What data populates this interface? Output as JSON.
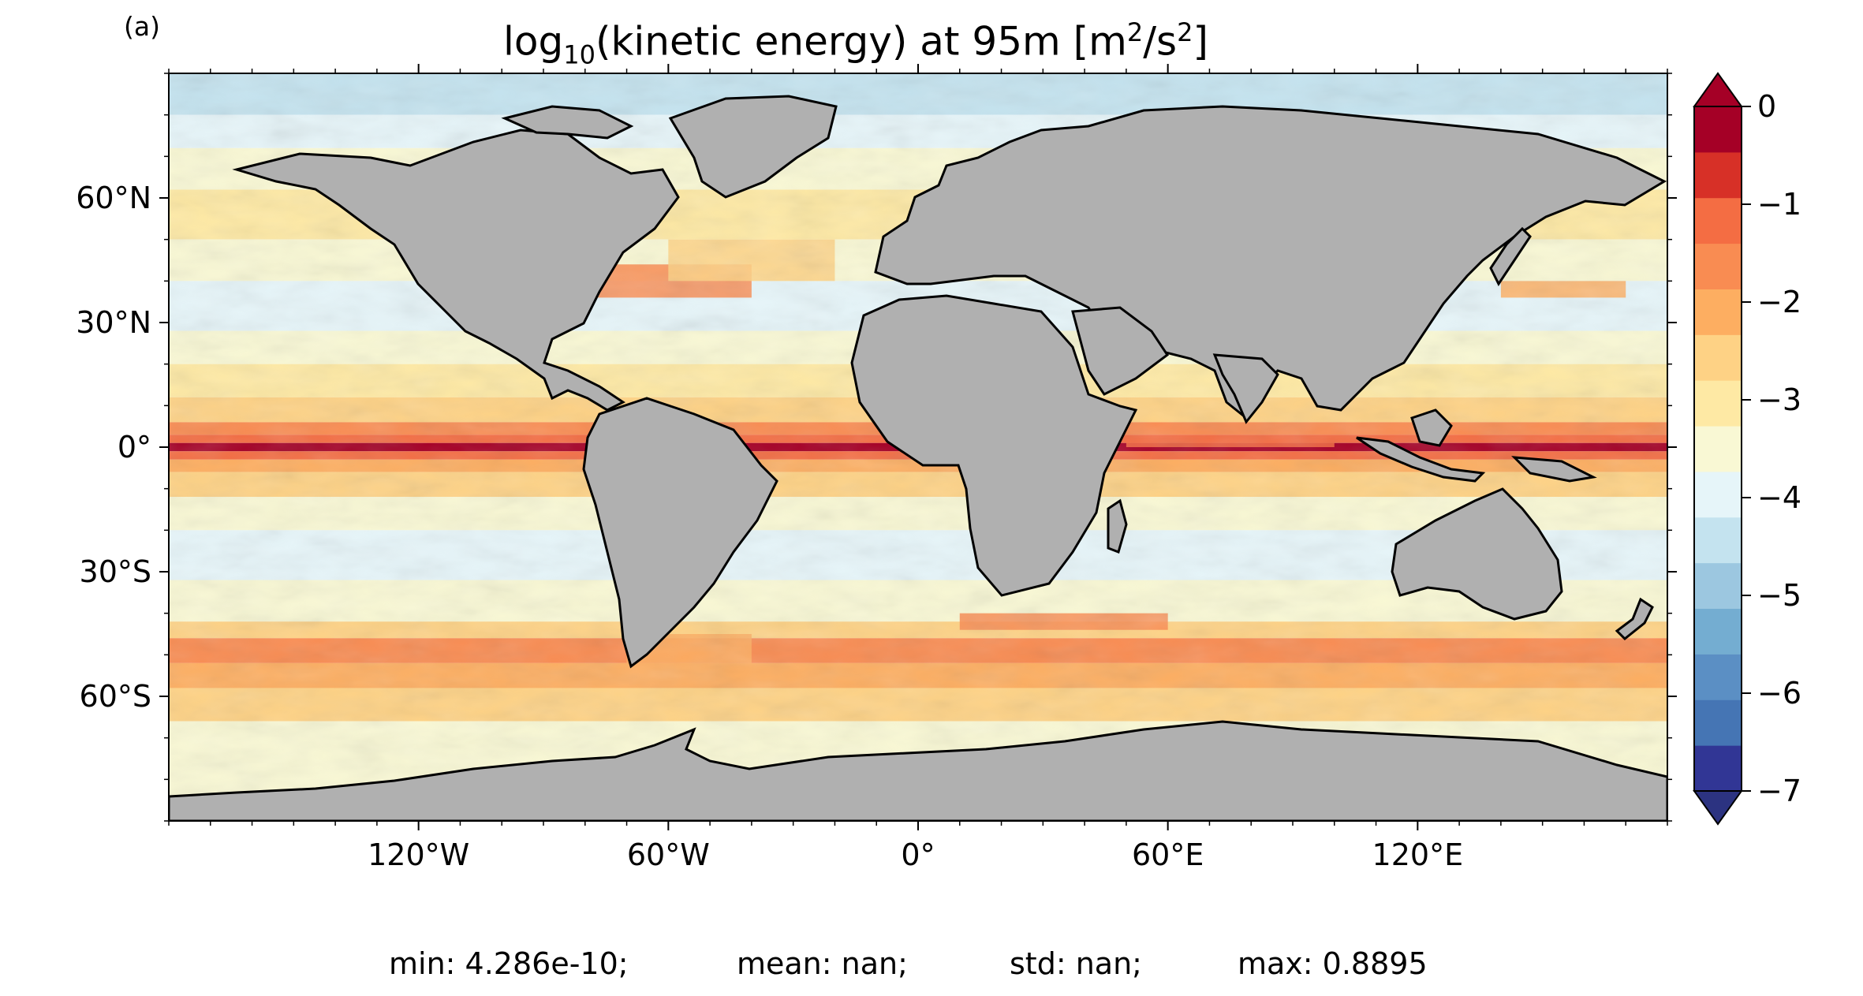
{
  "figure": {
    "panel_label": "(a)",
    "title": {
      "prefix": "log",
      "sub": "10",
      "middle": "(kinetic energy) at 95m [m",
      "sup1": "2",
      "slash": "/s",
      "sup2": "2",
      "suffix": "]"
    },
    "stats": {
      "min": "min: 4.286e-10;",
      "mean": "mean: nan;",
      "std": "std: nan;",
      "max": "max: 0.8895"
    }
  },
  "chart_data": {
    "type": "heatmap",
    "projection": "plate carree",
    "variable": "log10(kinetic energy) at 95m",
    "units": "m2/s2",
    "x_range": [
      -180,
      180
    ],
    "y_range": [
      -90,
      90
    ],
    "x_ticks": [
      {
        "value": -120,
        "label": "120°W"
      },
      {
        "value": -60,
        "label": "60°W"
      },
      {
        "value": 0,
        "label": "0°"
      },
      {
        "value": 60,
        "label": "60°E"
      },
      {
        "value": 120,
        "label": "120°E"
      }
    ],
    "y_ticks": [
      {
        "value": 60,
        "label": "60°N"
      },
      {
        "value": 30,
        "label": "30°N"
      },
      {
        "value": 0,
        "label": "0°"
      },
      {
        "value": -30,
        "label": "30°S"
      },
      {
        "value": -60,
        "label": "60°S"
      }
    ],
    "colorbar": {
      "range": [
        -7,
        0
      ],
      "levels": 15,
      "extend": "both",
      "ticks": [
        {
          "value": 0,
          "label": "0"
        },
        {
          "value": -1,
          "label": "−1"
        },
        {
          "value": -2,
          "label": "−2"
        },
        {
          "value": -3,
          "label": "−3"
        },
        {
          "value": -4,
          "label": "−4"
        },
        {
          "value": -5,
          "label": "−5"
        },
        {
          "value": -6,
          "label": "−6"
        },
        {
          "value": -7,
          "label": "−7"
        }
      ],
      "colors": [
        "#313695",
        "#4575b4",
        "#5b8fc4",
        "#74add1",
        "#9cc7e0",
        "#c4e3ef",
        "#e6f5f9",
        "#f9f8d4",
        "#fee9a4",
        "#fed285",
        "#fdae61",
        "#f98c52",
        "#f46d43",
        "#d73027",
        "#a50026"
      ],
      "under_color": "#2c3381",
      "over_color": "#a50026"
    },
    "statistics": {
      "min": 4.286e-10,
      "mean": "nan",
      "std": "nan",
      "max": 0.8895
    },
    "land_color": "#b0b0b0",
    "colormap": "RdYlBu_r"
  }
}
